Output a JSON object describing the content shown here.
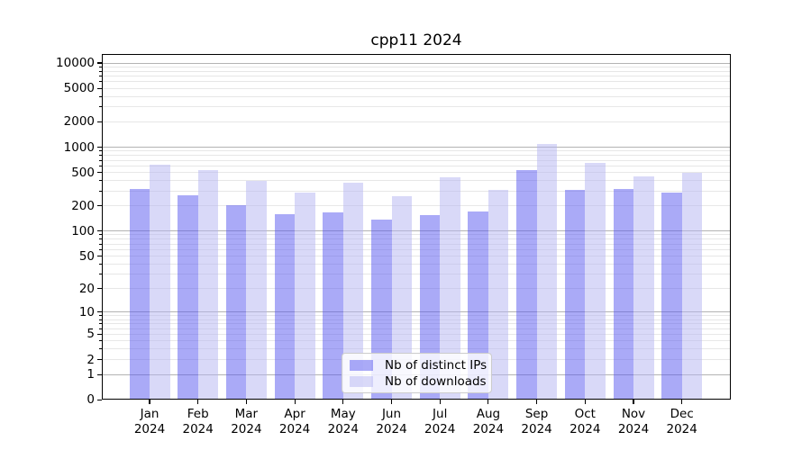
{
  "title": "cpp11 2024",
  "colors": {
    "ips_bar_base": "#5555f0",
    "downloads_bar_base": "#b4b4f2",
    "bar_alpha": 0.5,
    "grid_major": "#b3b3b3",
    "grid_minor": "#e7e7e7",
    "axis": "#000000",
    "legend_border": "#cccccc",
    "legend_bg": "rgba(255,255,255,0.8)"
  },
  "chart_data": {
    "type": "bar",
    "title": "cpp11 2024",
    "categories": [
      "Jan 2024",
      "Feb 2024",
      "Mar 2024",
      "Apr 2024",
      "May 2024",
      "Jun 2024",
      "Jul 2024",
      "Aug 2024",
      "Sep 2024",
      "Oct 2024",
      "Nov 2024",
      "Dec 2024"
    ],
    "series": [
      {
        "name": "Nb of distinct IPs",
        "values": [
          318,
          270,
          206,
          158,
          168,
          137,
          155,
          172,
          530,
          310,
          320,
          288
        ]
      },
      {
        "name": "Nb of downloads",
        "values": [
          620,
          535,
          400,
          290,
          380,
          260,
          435,
          308,
          1080,
          650,
          450,
          500
        ]
      }
    ],
    "y_ticks": [
      0,
      1,
      2,
      5,
      10,
      20,
      50,
      100,
      200,
      500,
      1000,
      2000,
      5000,
      10000
    ],
    "y_scale": "log1p",
    "ylim": [
      0,
      12800
    ],
    "xlabel": "",
    "ylabel": "",
    "grid": "both",
    "legend_position": "lower center"
  }
}
